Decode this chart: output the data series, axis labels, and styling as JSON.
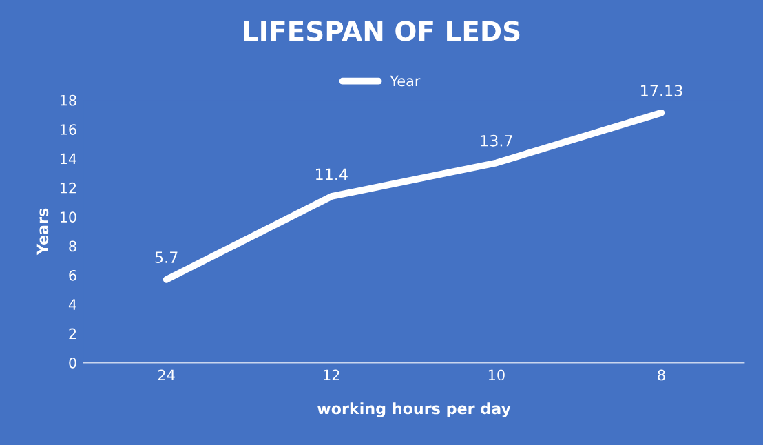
{
  "chart_data": {
    "type": "line",
    "title": "LIFESPAN OF LEDS",
    "xlabel": "working hours per day",
    "ylabel": "Years",
    "categories": [
      "24",
      "12",
      "10",
      "8"
    ],
    "series": [
      {
        "name": "Year",
        "color": "#ffffff",
        "values": [
          5.7,
          11.4,
          13.7,
          17.13
        ]
      }
    ],
    "ylim": [
      0,
      18
    ],
    "yticks": [
      0,
      2,
      4,
      6,
      8,
      10,
      12,
      14,
      16,
      18
    ],
    "data_labels": true,
    "legend": "top",
    "grid": false,
    "marker": "none",
    "line_style": "solid"
  }
}
